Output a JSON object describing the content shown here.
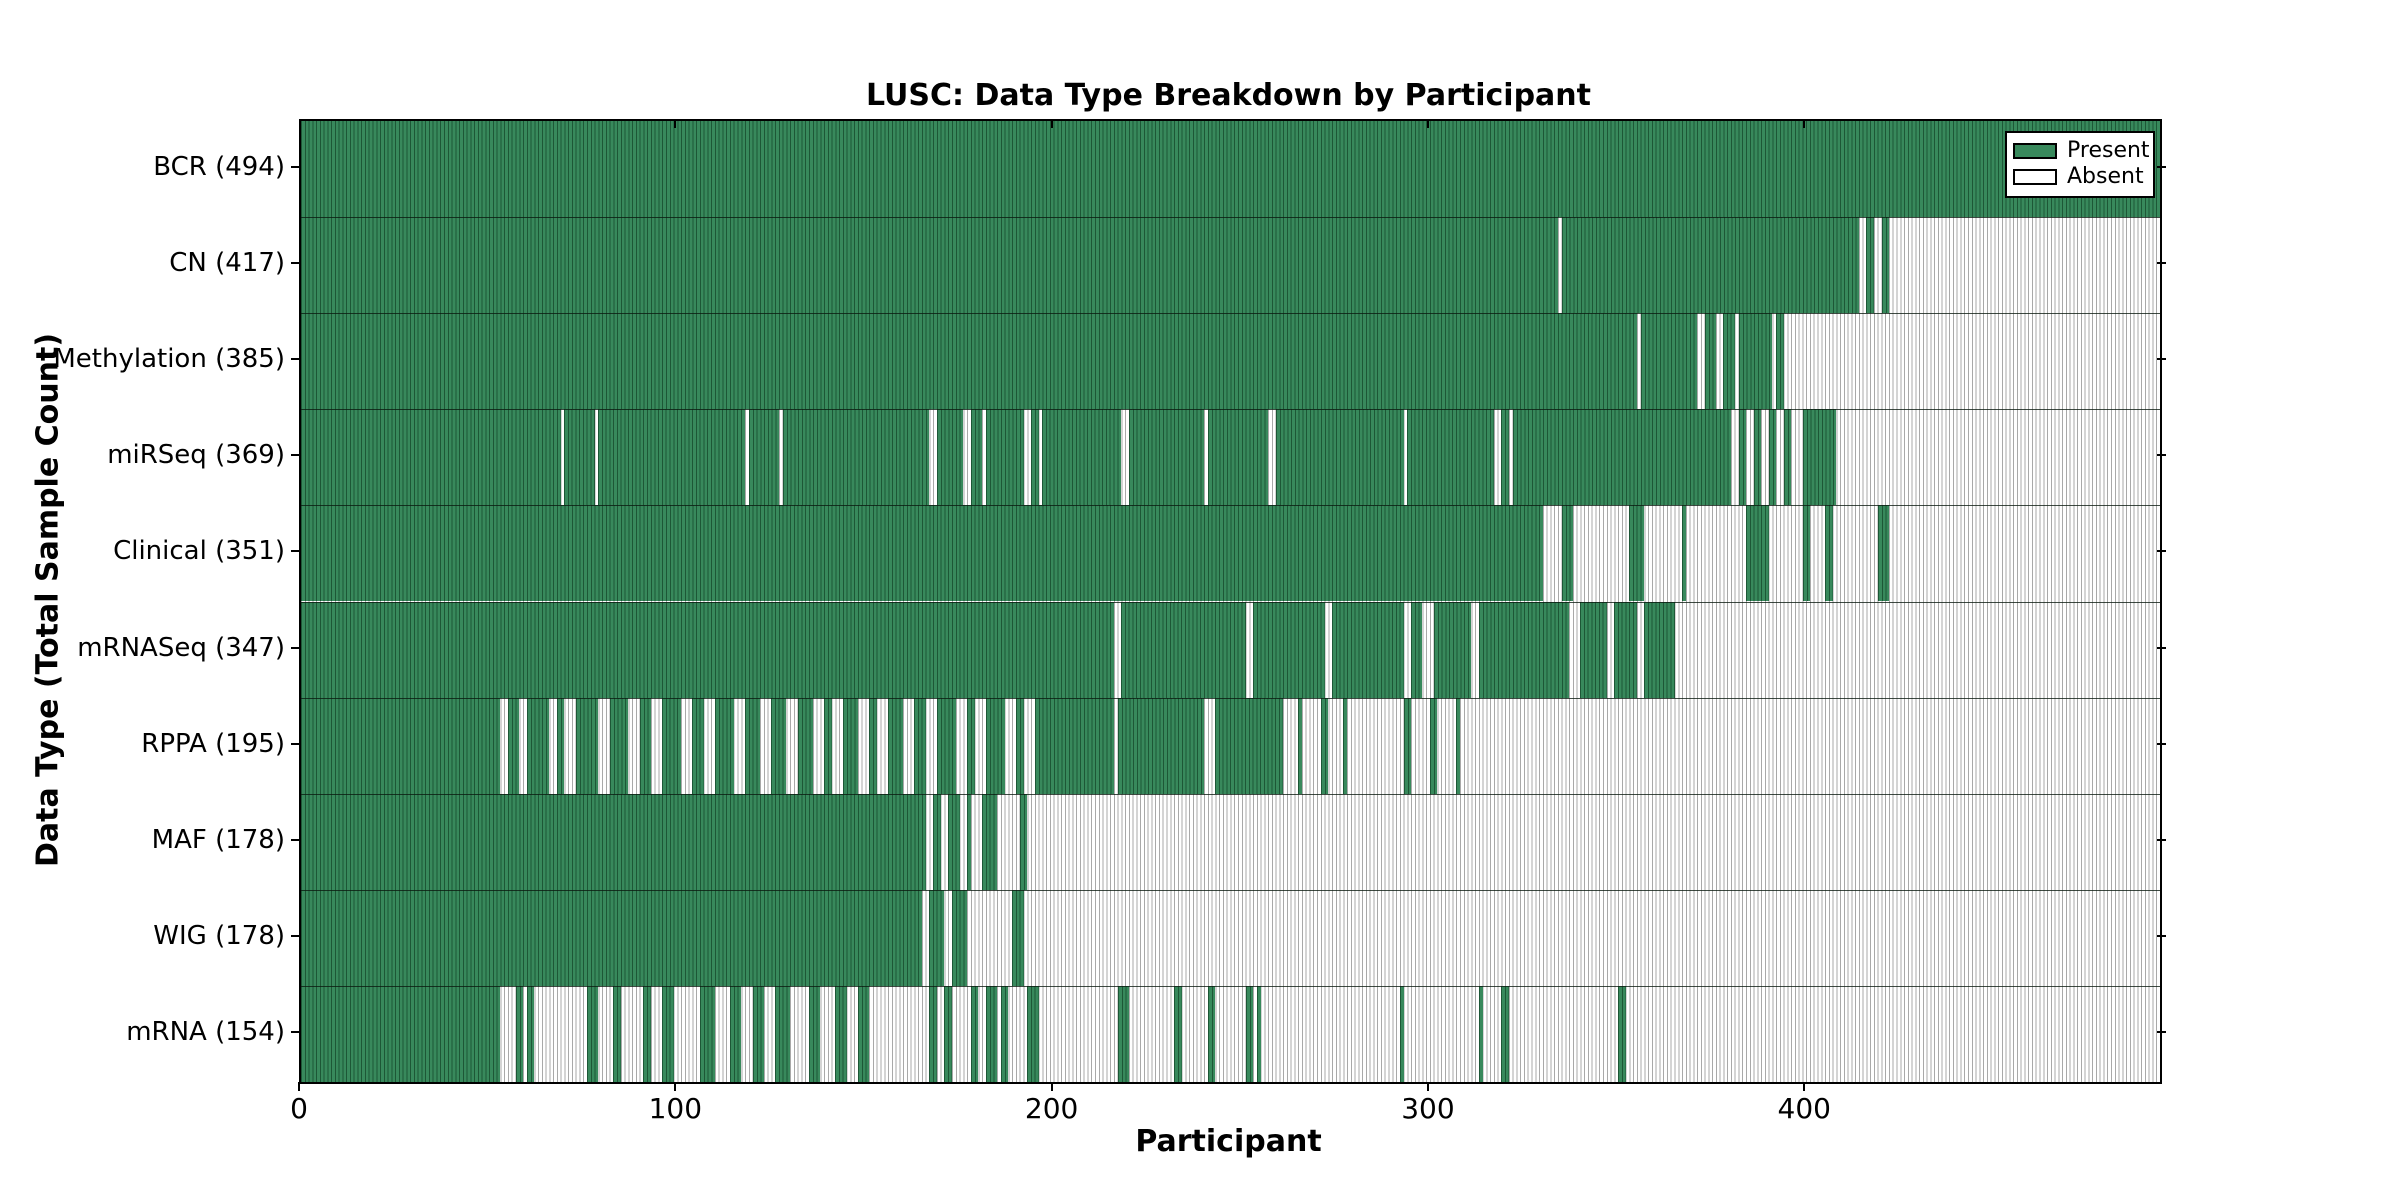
{
  "colors": {
    "present_fill": "#38895C",
    "present_edge": "#1D5736",
    "absent_fill": "#FFFFFF",
    "absent_edge": "#A9A9A9",
    "spine": "#000000",
    "divider": "#10200F"
  },
  "legend": {
    "present_label": "Present",
    "absent_label": "Absent"
  },
  "chart_data": {
    "type": "heatmap",
    "title": "LUSC: Data Type Breakdown by Participant",
    "xlabel": "Participant",
    "ylabel": "Data Type (Total Sample Count)",
    "x_min": 0,
    "x_max": 494,
    "x_ticks": [
      0,
      100,
      200,
      300,
      400
    ],
    "legend_entries": [
      "Present",
      "Absent"
    ],
    "legend_position": "upper right",
    "grid": false,
    "rows": [
      {
        "label": "BCR (494)",
        "data_type": "BCR",
        "total": 494,
        "present_segments": [
          [
            0,
            494
          ]
        ]
      },
      {
        "label": "CN (417)",
        "data_type": "CN",
        "total": 417,
        "present_segments": [
          [
            0,
            334
          ],
          [
            335,
            414
          ],
          [
            416,
            418
          ],
          [
            420,
            422
          ]
        ]
      },
      {
        "label": "Methylation (385)",
        "data_type": "Methylation",
        "total": 385,
        "present_segments": [
          [
            0,
            355
          ],
          [
            356,
            371
          ],
          [
            373,
            376
          ],
          [
            378,
            381
          ],
          [
            382,
            391
          ],
          [
            392,
            394
          ]
        ]
      },
      {
        "label": "miRSeq (369)",
        "data_type": "miRSeq",
        "total": 369,
        "present_segments": [
          [
            0,
            69
          ],
          [
            70,
            78
          ],
          [
            79,
            118
          ],
          [
            119,
            127
          ],
          [
            128,
            167
          ],
          [
            169,
            176
          ],
          [
            178,
            181
          ],
          [
            182,
            192
          ],
          [
            194,
            196
          ],
          [
            197,
            218
          ],
          [
            220,
            240
          ],
          [
            241,
            257
          ],
          [
            259,
            293
          ],
          [
            294,
            317
          ],
          [
            319,
            321
          ],
          [
            322,
            380
          ],
          [
            382,
            384
          ],
          [
            386,
            388
          ],
          [
            390,
            392
          ],
          [
            394,
            396
          ],
          [
            399,
            408
          ]
        ]
      },
      {
        "label": "Clinical (351)",
        "data_type": "Clinical",
        "total": 351,
        "present_segments": [
          [
            0,
            330
          ],
          [
            335,
            338
          ],
          [
            353,
            357
          ],
          [
            367,
            368
          ],
          [
            384,
            390
          ],
          [
            399,
            401
          ],
          [
            405,
            407
          ],
          [
            419,
            422
          ]
        ]
      },
      {
        "label": "mRNASeq (347)",
        "data_type": "mRNASeq",
        "total": 347,
        "present_segments": [
          [
            0,
            216
          ],
          [
            218,
            251
          ],
          [
            253,
            272
          ],
          [
            274,
            293
          ],
          [
            295,
            298
          ],
          [
            301,
            311
          ],
          [
            313,
            337
          ],
          [
            340,
            347
          ],
          [
            349,
            355
          ],
          [
            357,
            365
          ]
        ]
      },
      {
        "label": "RPPA (195)",
        "data_type": "RPPA",
        "total": 195,
        "present_segments": [
          [
            0,
            53
          ],
          [
            55,
            58
          ],
          [
            60,
            66
          ],
          [
            68,
            70
          ],
          [
            73,
            79
          ],
          [
            82,
            87
          ],
          [
            90,
            93
          ],
          [
            96,
            101
          ],
          [
            104,
            107
          ],
          [
            110,
            115
          ],
          [
            118,
            122
          ],
          [
            125,
            129
          ],
          [
            132,
            136
          ],
          [
            139,
            141
          ],
          [
            144,
            148
          ],
          [
            151,
            153
          ],
          [
            156,
            160
          ],
          [
            163,
            166
          ],
          [
            169,
            174
          ],
          [
            177,
            179
          ],
          [
            182,
            187
          ],
          [
            190,
            192
          ],
          [
            195,
            216
          ],
          [
            217,
            240
          ],
          [
            243,
            261
          ],
          [
            265,
            266
          ],
          [
            271,
            273
          ],
          [
            277,
            278
          ],
          [
            293,
            295
          ],
          [
            300,
            302
          ],
          [
            307,
            308
          ]
        ]
      },
      {
        "label": "MAF (178)",
        "data_type": "MAF",
        "total": 178,
        "present_segments": [
          [
            0,
            166
          ],
          [
            168,
            170
          ],
          [
            172,
            175
          ],
          [
            177,
            178
          ],
          [
            181,
            185
          ],
          [
            191,
            193
          ]
        ]
      },
      {
        "label": "WIG (178)",
        "data_type": "WIG",
        "total": 178,
        "present_segments": [
          [
            0,
            165
          ],
          [
            167,
            171
          ],
          [
            173,
            177
          ],
          [
            189,
            192
          ]
        ]
      },
      {
        "label": "mRNA (154)",
        "data_type": "mRNA",
        "total": 154,
        "present_segments": [
          [
            0,
            53
          ],
          [
            57,
            59
          ],
          [
            60,
            62
          ],
          [
            76,
            79
          ],
          [
            83,
            85
          ],
          [
            91,
            93
          ],
          [
            96,
            99
          ],
          [
            106,
            110
          ],
          [
            114,
            117
          ],
          [
            120,
            123
          ],
          [
            126,
            130
          ],
          [
            135,
            138
          ],
          [
            142,
            145
          ],
          [
            148,
            151
          ],
          [
            167,
            169
          ],
          [
            171,
            173
          ],
          [
            178,
            180
          ],
          [
            182,
            185
          ],
          [
            186,
            188
          ],
          [
            193,
            196
          ],
          [
            217,
            220
          ],
          [
            232,
            234
          ],
          [
            241,
            243
          ],
          [
            251,
            253
          ],
          [
            254,
            255
          ],
          [
            292,
            293
          ],
          [
            313,
            314
          ],
          [
            319,
            321
          ],
          [
            350,
            352
          ]
        ]
      }
    ]
  }
}
